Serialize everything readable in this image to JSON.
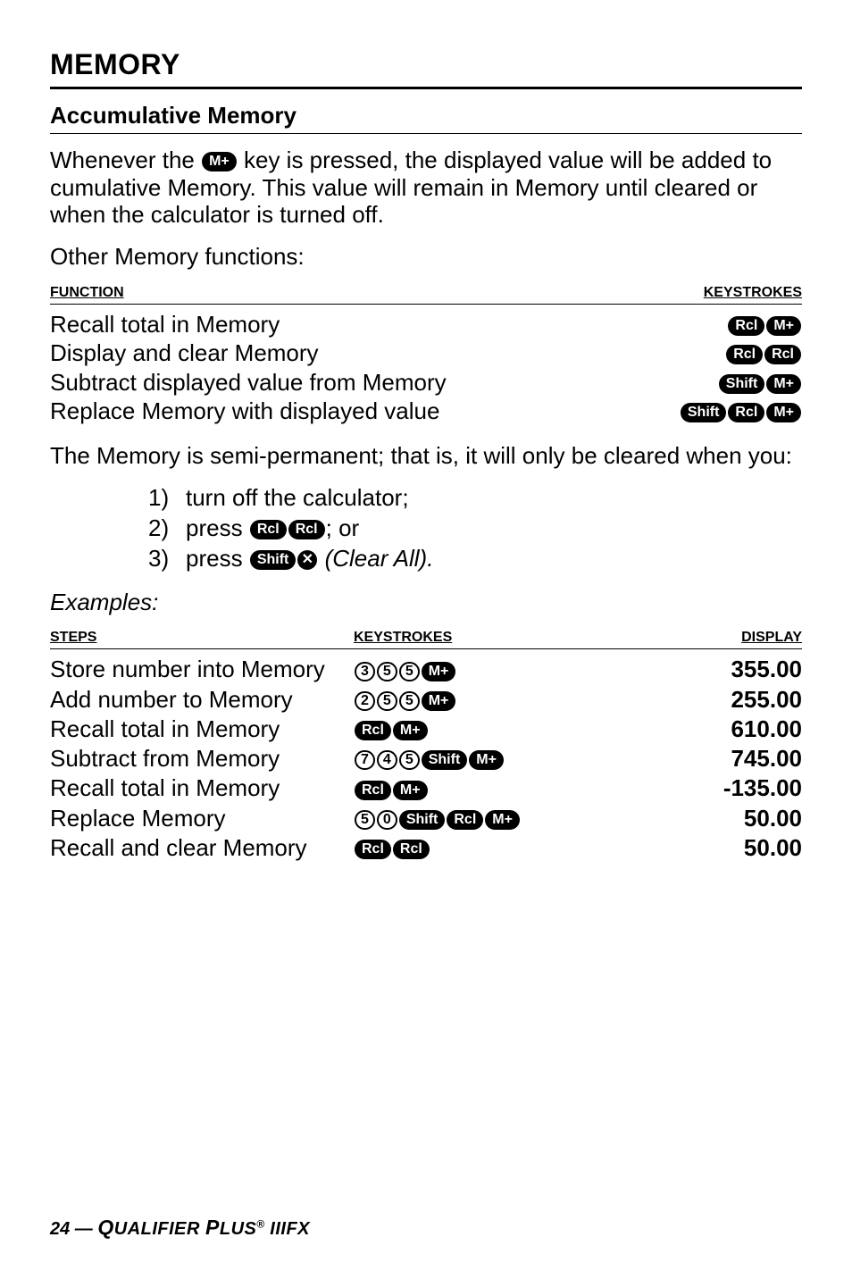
{
  "section_title": "MEMORY",
  "sub_title": "Accumulative Memory",
  "intro_part1": "Whenever the ",
  "intro_key": "M+",
  "intro_part2": " key is pressed, the displayed value will be added to cumulative Memory. This value will remain in Memory until cleared or when the calculator is turned off.",
  "other_functions_label": "Other Memory functions:",
  "t1_header_left": "FUNCTION",
  "t1_header_right": "KEYSTROKES",
  "t1_rows": [
    {
      "label": "Recall total in Memory",
      "keys": [
        "Rcl",
        "M+"
      ]
    },
    {
      "label": "Display and clear Memory",
      "keys": [
        "Rcl",
        "Rcl"
      ]
    },
    {
      "label": "Subtract displayed value from Memory",
      "keys": [
        "Shift",
        "M+"
      ]
    },
    {
      "label": "Replace Memory with displayed value",
      "keys": [
        "Shift",
        "Rcl",
        "M+"
      ]
    }
  ],
  "semi_perm": "The Memory is semi-permanent; that is, it will only be cleared when you:",
  "list": [
    {
      "n": "1)",
      "pre": "turn off the calculator;",
      "keys": [],
      "post": ""
    },
    {
      "n": "2)",
      "pre": "press ",
      "keys": [
        "Rcl",
        "Rcl"
      ],
      "post": "; or"
    },
    {
      "n": "3)",
      "pre": "press ",
      "keys": [
        "Shift",
        "X"
      ],
      "post": " (Clear All)."
    }
  ],
  "examples_label": "Examples:",
  "t2_headers": {
    "c1": "STEPS",
    "c2": "KEYSTROKES",
    "c3": "DISPLAY"
  },
  "t2_rows": [
    {
      "step": "Store number into Memory",
      "keys": [
        {
          "t": "3",
          "o": true
        },
        {
          "t": "5",
          "o": true
        },
        {
          "t": "5",
          "o": true
        },
        {
          "t": "M+"
        }
      ],
      "disp": "355.00"
    },
    {
      "step": "Add number to Memory",
      "keys": [
        {
          "t": "2",
          "o": true
        },
        {
          "t": "5",
          "o": true
        },
        {
          "t": "5",
          "o": true
        },
        {
          "t": "M+"
        }
      ],
      "disp": "255.00"
    },
    {
      "step": "Recall total in Memory",
      "keys": [
        {
          "t": "Rcl"
        },
        {
          "t": "M+"
        }
      ],
      "disp": "610.00"
    },
    {
      "step": "Subtract from Memory",
      "keys": [
        {
          "t": "7",
          "o": true
        },
        {
          "t": "4",
          "o": true
        },
        {
          "t": "5",
          "o": true
        },
        {
          "t": "Shift"
        },
        {
          "t": "M+"
        }
      ],
      "disp": "745.00"
    },
    {
      "step": "Recall total in Memory",
      "keys": [
        {
          "t": "Rcl"
        },
        {
          "t": "M+"
        }
      ],
      "disp": "-135.00"
    },
    {
      "step": "Replace Memory",
      "keys": [
        {
          "t": "5",
          "o": true
        },
        {
          "t": "0",
          "o": true
        },
        {
          "t": "Shift"
        },
        {
          "t": "Rcl"
        },
        {
          "t": "M+"
        }
      ],
      "disp": "50.00"
    },
    {
      "step": "Recall and clear Memory",
      "keys": [
        {
          "t": "Rcl"
        },
        {
          "t": "Rcl"
        }
      ],
      "disp": "50.00"
    }
  ],
  "footer_page": "24 — ",
  "footer_product1": "Q",
  "footer_product2": "UALIFIER ",
  "footer_product3": "P",
  "footer_product4": "LUS",
  "footer_reg": "®",
  "footer_model": " IIIFX"
}
